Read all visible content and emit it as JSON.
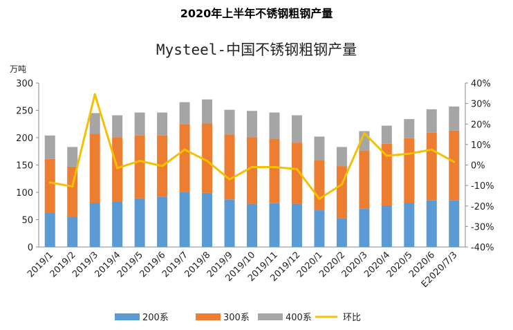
{
  "page_title": "2020年上半年不锈钢粗钢产量",
  "chart_data": {
    "type": "bar",
    "stacked": true,
    "title": "Mysteel-中国不锈钢粗钢产量",
    "ylabel": "万吨",
    "ylim": [
      0,
      300
    ],
    "yticks": [
      0,
      50,
      100,
      150,
      200,
      250,
      300
    ],
    "y2lim": [
      -40,
      40
    ],
    "y2ticks": [
      "-40%",
      "-30%",
      "-20%",
      "-10%",
      "0%",
      "10%",
      "20%",
      "30%",
      "40%"
    ],
    "categories": [
      "2019/1",
      "2019/2",
      "2019/3",
      "2019/4",
      "2019/5",
      "2019/6",
      "2019/7",
      "2019/8",
      "2019/9",
      "2019/10",
      "2019/11",
      "2019/12",
      "2020/1",
      "2020/2",
      "2020/3",
      "2020/4",
      "2020/5",
      "2020/6",
      "E2020/7/3"
    ],
    "series": [
      {
        "name": "200系",
        "type": "bar",
        "color": "#5b9bd5",
        "values": [
          62,
          55,
          81,
          83,
          89,
          92,
          101,
          99,
          87,
          79,
          80,
          79,
          67,
          52,
          70,
          76,
          81,
          85,
          85
        ]
      },
      {
        "name": "300系",
        "type": "bar",
        "color": "#ed7d31",
        "values": [
          99,
          92,
          126,
          118,
          115,
          112,
          124,
          127,
          119,
          122,
          118,
          112,
          92,
          96,
          106,
          113,
          118,
          124,
          128
        ]
      },
      {
        "name": "400系",
        "type": "bar",
        "color": "#a5a5a5",
        "values": [
          43,
          36,
          38,
          40,
          42,
          42,
          40,
          44,
          45,
          48,
          48,
          50,
          43,
          35,
          36,
          33,
          35,
          43,
          44
        ]
      },
      {
        "name": "环比",
        "type": "line",
        "axis": "right",
        "color": "#f5c000",
        "values": [
          -8.5,
          -10.5,
          34.5,
          -1.5,
          2,
          -0.5,
          7.5,
          2,
          -7,
          -1,
          -1,
          -2,
          -16.5,
          -9.5,
          15.5,
          4.5,
          5.5,
          7.5,
          1.5
        ]
      }
    ],
    "legend": "bottom",
    "grid": false
  }
}
